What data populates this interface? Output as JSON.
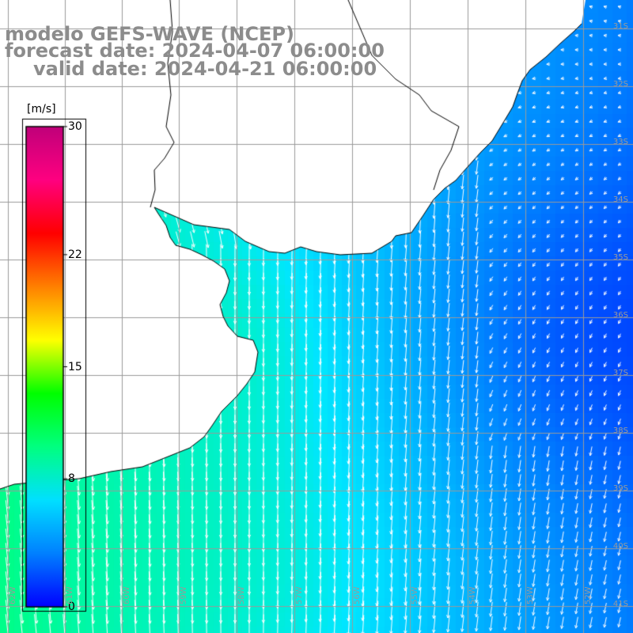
{
  "title": {
    "line1": "modelo GEFS-WAVE (NCEP)",
    "line2": "forecast date: 2024-04-07 06:00:00",
    "line3": "valid date: 2024-04-21 06:00:00"
  },
  "colorbar": {
    "units": "[m/s]",
    "ticks": [
      {
        "label": "30",
        "value": 30
      },
      {
        "label": "22",
        "value": 22
      },
      {
        "label": "15",
        "value": 15
      },
      {
        "label": "8",
        "value": 8
      },
      {
        "label": "0",
        "value": 0
      }
    ],
    "range": [
      0,
      30
    ],
    "colors": [
      "#0000ff",
      "#0080ff",
      "#00e0ff",
      "#00ff80",
      "#00ff00",
      "#ffff00",
      "#ff8000",
      "#ff0000",
      "#ff0080",
      "#c0007a"
    ]
  },
  "map": {
    "background_land": "#ffffff",
    "grid_color": "#9a9a9a",
    "coast_color": "#000000",
    "vector_color": "#ffffff",
    "lat_labels": [
      "31S",
      "32S",
      "33S",
      "34S",
      "35S",
      "36S",
      "37S",
      "38S",
      "39S",
      "40S",
      "41S"
    ],
    "lon_labels": [
      "62W",
      "61W",
      "60W",
      "59W",
      "58W",
      "57W",
      "56W",
      "55W",
      "54W",
      "53W",
      "52W"
    ]
  }
}
